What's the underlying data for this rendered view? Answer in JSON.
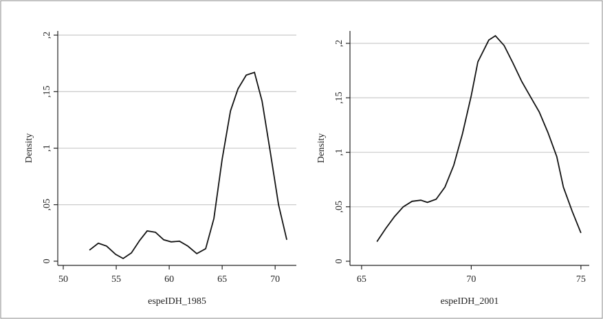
{
  "chart_data": [
    {
      "type": "line",
      "x_label": "espeIDH_1985",
      "y_label": "Density",
      "color": "#111111",
      "grid": true,
      "xlim": [
        49.48,
        72.0
      ],
      "ylim": [
        -0.0037,
        0.2037
      ],
      "xticks": [
        50,
        55,
        60,
        65,
        70
      ],
      "yticks": [
        0,
        {
          "value": 0.05,
          "label": ",05"
        },
        {
          "value": 0.1,
          "label": ",1"
        },
        {
          "value": 0.15,
          "label": ",15"
        },
        {
          "value": 0.2,
          "label": ",2"
        }
      ],
      "x": [
        52.47,
        53.31,
        54.09,
        54.94,
        55.65,
        56.43,
        57.21,
        57.92,
        58.7,
        59.48,
        60.19,
        60.97,
        61.75,
        62.6,
        63.44,
        64.22,
        65.0,
        65.78,
        66.49,
        67.27,
        68.05,
        68.77,
        69.55,
        70.32,
        71.1
      ],
      "values": [
        0.0098,
        0.0159,
        0.0134,
        0.0061,
        0.0024,
        0.0073,
        0.0183,
        0.0268,
        0.0256,
        0.0189,
        0.0171,
        0.0177,
        0.0134,
        0.0067,
        0.011,
        0.0378,
        0.0902,
        0.1329,
        0.1524,
        0.1646,
        0.167,
        0.1415,
        0.0963,
        0.05,
        0.0189
      ]
    },
    {
      "type": "line",
      "x_label": "espeIDH_2001",
      "y_label": "Density",
      "color": "#111111",
      "grid": true,
      "xlim": [
        64.47,
        75.38
      ],
      "ylim": [
        -0.0038,
        0.2114
      ],
      "xticks": [
        65,
        70,
        75
      ],
      "yticks": [
        0,
        {
          "value": 0.05,
          "label": ",05"
        },
        {
          "value": 0.1,
          "label": ",1"
        },
        {
          "value": 0.15,
          "label": ",15"
        },
        {
          "value": 0.2,
          "label": ",2"
        }
      ],
      "x": [
        65.7,
        66.1,
        66.5,
        66.9,
        67.3,
        67.7,
        68.0,
        68.4,
        68.8,
        69.2,
        69.6,
        70.0,
        70.3,
        70.8,
        71.1,
        71.5,
        71.9,
        72.3,
        72.7,
        73.1,
        73.5,
        73.9,
        74.2,
        74.6,
        75.0
      ],
      "values": [
        0.018,
        0.03,
        0.041,
        0.05,
        0.055,
        0.056,
        0.054,
        0.057,
        0.068,
        0.088,
        0.117,
        0.152,
        0.183,
        0.203,
        0.207,
        0.198,
        0.182,
        0.165,
        0.151,
        0.137,
        0.118,
        0.096,
        0.068,
        0.046,
        0.026
      ]
    }
  ]
}
